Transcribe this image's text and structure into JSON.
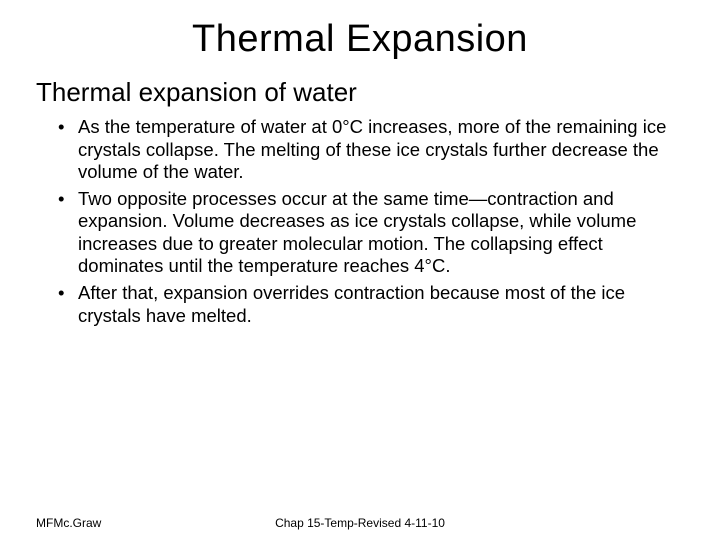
{
  "title": "Thermal Expansion",
  "subtitle": "Thermal expansion of water",
  "bullets": [
    "As the temperature of water at 0°C increases, more of the remaining ice crystals collapse. The melting of these ice crystals further decrease the volume of the water.",
    "Two opposite processes occur at the same time—contraction and expansion. Volume decreases as ice crystals collapse, while volume increases due to greater molecular motion. The collapsing effect dominates until the temperature reaches 4°C.",
    "After that, expansion overrides contraction because most of the ice crystals have melted."
  ],
  "footer": {
    "left": "MFMc.Graw",
    "center": "Chap 15-Temp-Revised 4-11-10"
  },
  "colors": {
    "background": "#ffffff",
    "text": "#000000"
  },
  "typography": {
    "title_fontsize": 38,
    "subtitle_fontsize": 26,
    "body_fontsize": 18.5,
    "footer_fontsize": 12,
    "font_family": "Trebuchet MS"
  }
}
